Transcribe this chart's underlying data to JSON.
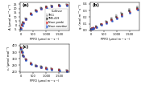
{
  "title_a": "(a)",
  "title_b": "(b)",
  "title_c": "(c)",
  "ylabel_a": "A (μmol m⁻² s⁻¹)",
  "ylabel_b": "gₛ (mol m⁻² s⁻¹)",
  "ylabel_c": "cᵢ (μmol mol⁻¹)",
  "xlabel": "PPFD (μmol m⁻² s⁻¹)",
  "cultivar_labels": [
    "TM-1",
    "TME-419",
    "Nase yombi",
    "Nase zanzibar"
  ],
  "cultivar_colors": [
    "#aaaaaa",
    "#333333",
    "#cc2222",
    "#2255cc"
  ],
  "ppfd": [
    0,
    50,
    100,
    200,
    400,
    600,
    800,
    1000,
    1200,
    1500,
    1800
  ],
  "A_data": [
    [
      -2.5,
      1.5,
      4.2,
      8.5,
      14.5,
      18.5,
      21.0,
      22.5,
      23.5,
      24.5,
      25.0
    ],
    [
      -3.0,
      1.0,
      3.8,
      8.0,
      14.0,
      18.0,
      20.5,
      22.0,
      23.0,
      24.0,
      24.5
    ],
    [
      -3.5,
      0.5,
      3.3,
      7.5,
      13.5,
      17.5,
      20.0,
      21.5,
      22.5,
      23.5,
      24.0
    ],
    [
      -4.0,
      0.0,
      2.8,
      7.0,
      13.0,
      17.0,
      19.5,
      21.0,
      22.0,
      23.0,
      23.5
    ]
  ],
  "gs_data": [
    [
      0.02,
      0.03,
      0.04,
      0.06,
      0.1,
      0.14,
      0.19,
      0.23,
      0.27,
      0.32,
      0.36
    ],
    [
      0.02,
      0.03,
      0.04,
      0.06,
      0.09,
      0.13,
      0.17,
      0.21,
      0.25,
      0.3,
      0.34
    ],
    [
      0.02,
      0.03,
      0.04,
      0.05,
      0.09,
      0.12,
      0.16,
      0.19,
      0.23,
      0.28,
      0.32
    ],
    [
      0.02,
      0.02,
      0.03,
      0.05,
      0.08,
      0.11,
      0.15,
      0.18,
      0.22,
      0.27,
      0.31
    ]
  ],
  "ci_data": [
    [
      390,
      360,
      330,
      300,
      268,
      252,
      240,
      232,
      226,
      218,
      212
    ],
    [
      385,
      355,
      325,
      295,
      264,
      248,
      237,
      229,
      223,
      215,
      209
    ],
    [
      382,
      352,
      322,
      292,
      261,
      245,
      234,
      226,
      220,
      212,
      206
    ],
    [
      378,
      348,
      318,
      288,
      258,
      242,
      231,
      223,
      217,
      209,
      203
    ]
  ],
  "A_yerr": [
    0.6,
    0.6,
    0.6,
    0.6,
    0.6,
    0.6,
    0.6,
    0.6,
    0.6,
    0.6,
    0.6
  ],
  "gs_yerr": [
    0.006,
    0.006,
    0.006,
    0.006,
    0.006,
    0.006,
    0.006,
    0.006,
    0.006,
    0.006,
    0.006
  ],
  "ci_yerr": [
    5,
    5,
    5,
    5,
    5,
    5,
    5,
    5,
    5,
    5,
    5
  ],
  "ppfd_offsets": [
    -15,
    -5,
    5,
    15
  ],
  "ylim_a": [
    -6,
    27
  ],
  "ylim_b": [
    0.0,
    0.42
  ],
  "ylim_c": [
    195,
    410
  ],
  "xlim": [
    -30,
    1900
  ],
  "xticks": [
    0,
    500,
    1000,
    1500
  ],
  "xtick_labels": [
    "0",
    "500",
    "1,000",
    "1,500"
  ],
  "yticks_a": [
    -5,
    0,
    5,
    10,
    15,
    20,
    25
  ],
  "ytick_labels_a": [
    "-5",
    "0",
    "5",
    "10",
    "15",
    "20",
    "25"
  ],
  "yticks_b": [
    0.0,
    0.1,
    0.2,
    0.3,
    0.4
  ],
  "ytick_labels_b": [
    "0.0",
    "0.1",
    "0.2",
    "0.3",
    "0.4"
  ],
  "yticks_c": [
    200,
    250,
    300,
    350,
    400
  ],
  "ytick_labels_c": [
    "200",
    "250",
    "300",
    "350",
    "400"
  ],
  "background_color": "#ffffff"
}
